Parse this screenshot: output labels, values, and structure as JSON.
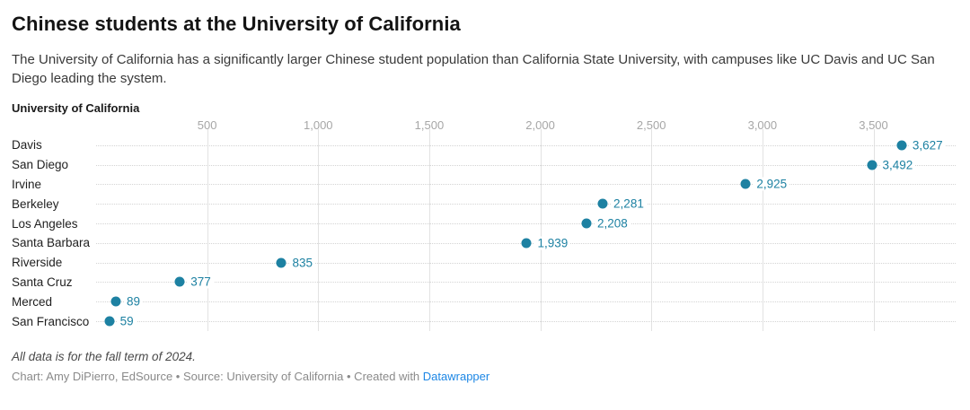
{
  "header": {
    "title": "Chinese students at the University of California",
    "description": "The University of California has a significantly larger Chinese student population than California State University, with campuses like UC Davis and UC San Diego leading the system."
  },
  "chart_data": {
    "type": "scatter",
    "subtype": "dot-plot",
    "title": "Chinese students at the University of California",
    "group_label": "University of California",
    "categories": [
      "Davis",
      "San Diego",
      "Irvine",
      "Berkeley",
      "Los Angeles",
      "Santa Barbara",
      "Riverside",
      "Santa Cruz",
      "Merced",
      "San Francisco"
    ],
    "values": [
      3627,
      3492,
      2925,
      2281,
      2208,
      1939,
      835,
      377,
      89,
      59
    ],
    "value_labels": [
      "3,627",
      "3,492",
      "2,925",
      "2,281",
      "2,208",
      "1,939",
      "835",
      "377",
      "89",
      "59"
    ],
    "xlabel": "",
    "ylabel": "",
    "xlim": [
      0,
      3870
    ],
    "x_ticks": [
      500,
      1000,
      1500,
      2000,
      2500,
      3000,
      3500
    ],
    "x_tick_labels": [
      "500",
      "1,000",
      "1,500",
      "2,000",
      "2,500",
      "3,000",
      "3,500"
    ],
    "grid": true,
    "legend_position": "none",
    "dot_color": "#1d81a2",
    "value_label_color": "#1d81a2",
    "gridline_color": "#e2e2e2",
    "leader_line_color": "#d4d4d4",
    "tick_label_color": "#a6a6a6"
  },
  "footer": {
    "note": "All data is for the fall term of 2024.",
    "byline_prefix": "Chart: Amy DiPierro, EdSource • Source: University of California • Created with ",
    "byline_link": "Datawrapper",
    "link_color": "#1d87e5"
  }
}
